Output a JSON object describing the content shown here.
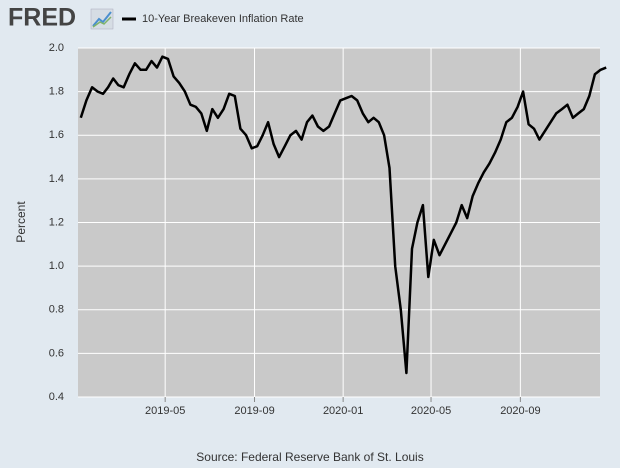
{
  "logo": "FRED",
  "chart_data": {
    "type": "line",
    "y_label": "Percent",
    "source": "Source: Federal Reserve Bank of St. Louis",
    "x": [
      "2019-01",
      "2019-01",
      "2019-01",
      "2019-01",
      "2019-02",
      "2019-02",
      "2019-02",
      "2019-02",
      "2019-03",
      "2019-03",
      "2019-03",
      "2019-03",
      "2019-04",
      "2019-04",
      "2019-04",
      "2019-04",
      "2019-05",
      "2019-05",
      "2019-05",
      "2019-05",
      "2019-06",
      "2019-06",
      "2019-06",
      "2019-06",
      "2019-07",
      "2019-07",
      "2019-07",
      "2019-07",
      "2019-08",
      "2019-08",
      "2019-08",
      "2019-08",
      "2019-09",
      "2019-09",
      "2019-09",
      "2019-09",
      "2019-10",
      "2019-10",
      "2019-10",
      "2019-10",
      "2019-11",
      "2019-11",
      "2019-11",
      "2019-11",
      "2019-12",
      "2019-12",
      "2019-12",
      "2019-12",
      "2020-01",
      "2020-01",
      "2020-01",
      "2020-01",
      "2020-02",
      "2020-02",
      "2020-02",
      "2020-02",
      "2020-03",
      "2020-03",
      "2020-03",
      "2020-03",
      "2020-04",
      "2020-04",
      "2020-04",
      "2020-04",
      "2020-05",
      "2020-05",
      "2020-05",
      "2020-05",
      "2020-06",
      "2020-06",
      "2020-06",
      "2020-06",
      "2020-07",
      "2020-07",
      "2020-07",
      "2020-07",
      "2020-08",
      "2020-08",
      "2020-08",
      "2020-08",
      "2020-09",
      "2020-09",
      "2020-09",
      "2020-09",
      "2020-10",
      "2020-10",
      "2020-10",
      "2020-10",
      "2020-11",
      "2020-11",
      "2020-11",
      "2020-11",
      "2020-12",
      "2020-12",
      "2020-12",
      "2020-12"
    ],
    "series": [
      {
        "name": "10-Year Breakeven Inflation Rate",
        "color": "#000000",
        "values": [
          1.68,
          1.76,
          1.82,
          1.8,
          1.79,
          1.82,
          1.86,
          1.83,
          1.82,
          1.88,
          1.93,
          1.9,
          1.9,
          1.94,
          1.91,
          1.96,
          1.95,
          1.87,
          1.84,
          1.8,
          1.74,
          1.73,
          1.7,
          1.62,
          1.72,
          1.68,
          1.72,
          1.79,
          1.78,
          1.63,
          1.6,
          1.54,
          1.55,
          1.6,
          1.66,
          1.56,
          1.5,
          1.55,
          1.6,
          1.62,
          1.58,
          1.66,
          1.69,
          1.64,
          1.62,
          1.64,
          1.7,
          1.76,
          1.77,
          1.78,
          1.76,
          1.7,
          1.66,
          1.68,
          1.66,
          1.6,
          1.45,
          1.0,
          0.8,
          0.51,
          1.08,
          1.2,
          1.28,
          0.95,
          1.12,
          1.05,
          1.1,
          1.15,
          1.2,
          1.28,
          1.22,
          1.32,
          1.38,
          1.43,
          1.47,
          1.52,
          1.58,
          1.66,
          1.68,
          1.73,
          1.8,
          1.65,
          1.63,
          1.58,
          1.62,
          1.66,
          1.7,
          1.72,
          1.74,
          1.68,
          1.7,
          1.72,
          1.78,
          1.88,
          1.9,
          1.91
        ]
      }
    ],
    "xlim": [
      "2019-01",
      "2021-01"
    ],
    "xticks": [
      "2019-05",
      "2019-09",
      "2020-01",
      "2020-05",
      "2020-09"
    ],
    "ylim": [
      0.4,
      2.0
    ],
    "yticks": [
      {
        "value": 0.4,
        "label": "0.4"
      },
      {
        "value": 0.6,
        "label": "0.6"
      },
      {
        "value": 0.8,
        "label": "0.8"
      },
      {
        "value": 1.0,
        "label": "1.0"
      },
      {
        "value": 1.2,
        "label": "1.2"
      },
      {
        "value": 1.4,
        "label": "1.4"
      },
      {
        "value": 1.6,
        "label": "1.6"
      },
      {
        "value": 1.8,
        "label": "1.8"
      },
      {
        "value": 2.0,
        "label": "2.0"
      }
    ],
    "grid": true
  }
}
